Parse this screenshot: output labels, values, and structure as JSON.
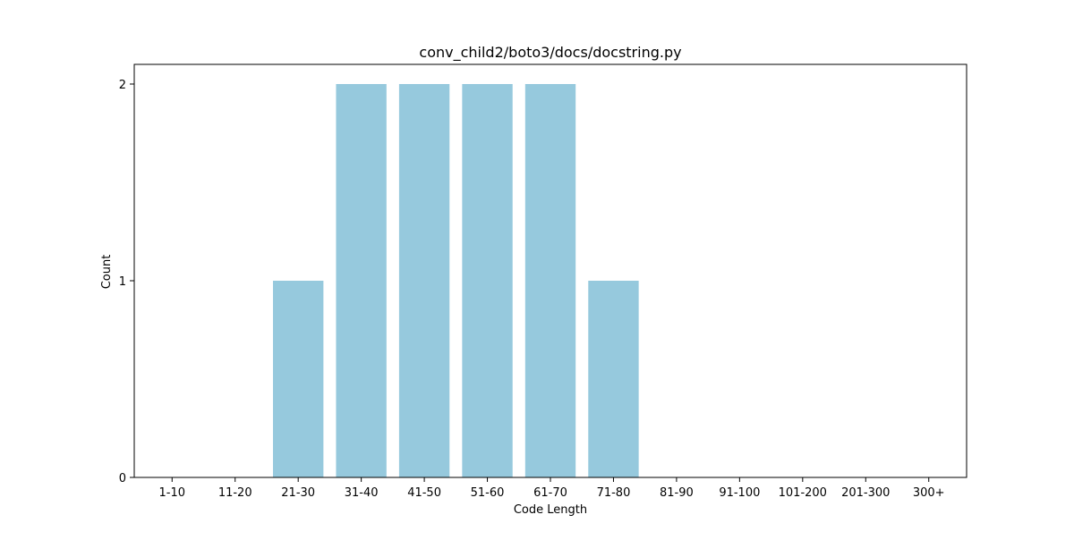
{
  "chart_data": {
    "type": "bar",
    "title": "conv_child2/boto3/docs/docstring.py",
    "xlabel": "Code Length",
    "ylabel": "Count",
    "categories": [
      "1-10",
      "11-20",
      "21-30",
      "31-40",
      "41-50",
      "51-60",
      "61-70",
      "71-80",
      "81-90",
      "91-100",
      "101-200",
      "201-300",
      "300+"
    ],
    "values": [
      0,
      0,
      1,
      2,
      2,
      2,
      2,
      1,
      0,
      0,
      0,
      0,
      0
    ],
    "ylim": [
      0,
      2.1
    ],
    "yticks": [
      0,
      1,
      2
    ],
    "grid": false,
    "bar_color": "#96c9dd"
  }
}
